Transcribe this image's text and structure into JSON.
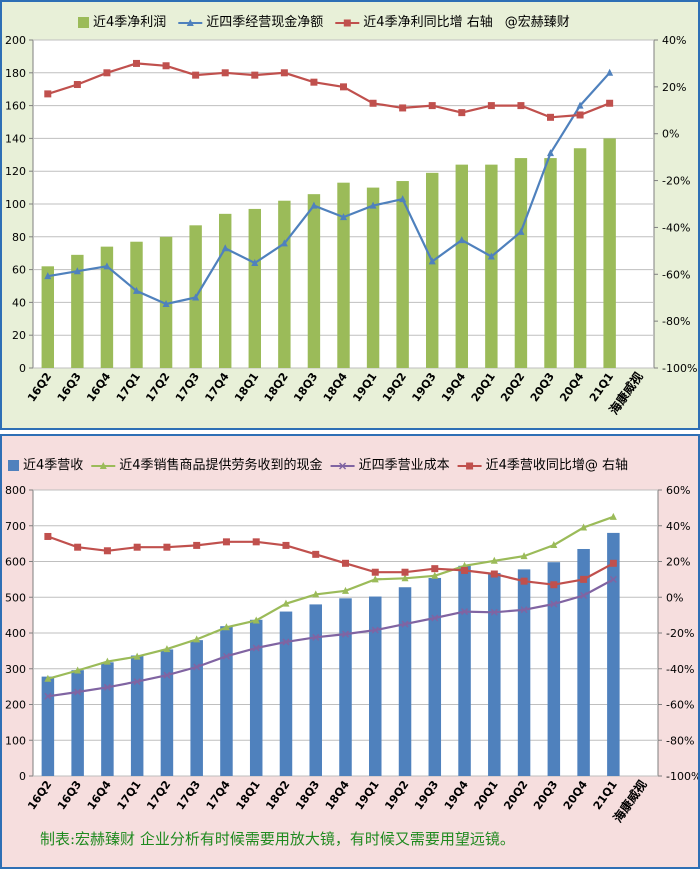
{
  "chart_data": [
    {
      "type": "bar",
      "title": "",
      "legend_position": "top",
      "legend": [
        "近4季净利润",
        "近四季经营现金净额",
        "近4季净利同比增 右轴",
        "@宏赫臻财"
      ],
      "categories": [
        "16Q2",
        "16Q3",
        "16Q4",
        "17Q1",
        "17Q2",
        "17Q3",
        "17Q4",
        "18Q1",
        "18Q2",
        "18Q3",
        "18Q4",
        "19Q1",
        "19Q2",
        "19Q3",
        "19Q4",
        "20Q1",
        "20Q2",
        "20Q3",
        "20Q4",
        "21Q1"
      ],
      "extra_xlabel": "海康威视",
      "ylim": [
        0,
        200
      ],
      "y_ticks": [
        0,
        20,
        40,
        60,
        80,
        100,
        120,
        140,
        160,
        180,
        200
      ],
      "y2lim": [
        -100,
        40
      ],
      "y2_ticks": [
        "-100%",
        "-80%",
        "-60%",
        "-40%",
        "-20%",
        "0%",
        "20%",
        "40%"
      ],
      "grid": true,
      "series": [
        {
          "name": "近4季净利润",
          "type": "bar",
          "axis": "left",
          "color": "#9bbb59",
          "values": [
            62,
            69,
            74,
            77,
            80,
            87,
            94,
            97,
            102,
            106,
            113,
            110,
            114,
            119,
            124,
            124,
            128,
            128,
            134,
            140
          ]
        },
        {
          "name": "近四季经营现金净额",
          "type": "line",
          "axis": "left",
          "color": "#4f81bd",
          "values": [
            56,
            59,
            62,
            47,
            39,
            43,
            73,
            64,
            76,
            99,
            92,
            99,
            103,
            65,
            78,
            68,
            83,
            131,
            160,
            180
          ]
        },
        {
          "name": "近4季净利同比增 右轴",
          "type": "line",
          "axis": "right",
          "color": "#c0504d",
          "values": [
            17,
            21,
            26,
            30,
            29,
            25,
            26,
            25,
            26,
            22,
            20,
            13,
            11,
            12,
            9,
            12,
            12,
            7,
            8,
            13
          ]
        }
      ]
    },
    {
      "type": "bar",
      "title": "",
      "legend_position": "top",
      "legend": [
        "近4季营收",
        "近4季销售商品提供劳务收到的现金",
        "近四季营业成本",
        "近4季营收同比增@ 右轴"
      ],
      "categories": [
        "16Q2",
        "16Q3",
        "16Q4",
        "17Q1",
        "17Q2",
        "17Q3",
        "17Q4",
        "18Q1",
        "18Q2",
        "18Q3",
        "18Q4",
        "19Q1",
        "19Q2",
        "19Q3",
        "19Q4",
        "20Q1",
        "20Q2",
        "20Q3",
        "20Q4",
        "21Q1"
      ],
      "extra_xlabel": "海康威视",
      "ylim": [
        0,
        800
      ],
      "y_ticks": [
        0,
        100,
        200,
        300,
        400,
        500,
        600,
        700,
        800
      ],
      "y2lim": [
        -100,
        60
      ],
      "y2_ticks": [
        "-100%",
        "-80%",
        "-60%",
        "-40%",
        "-20%",
        "0%",
        "20%",
        "40%",
        "60%"
      ],
      "grid": true,
      "series": [
        {
          "name": "近4季营收",
          "type": "bar",
          "axis": "left",
          "color": "#4f81bd",
          "values": [
            278,
            296,
            318,
            337,
            354,
            380,
            419,
            437,
            460,
            480,
            497,
            502,
            528,
            554,
            588,
            568,
            578,
            598,
            635,
            680
          ]
        },
        {
          "name": "近4季销售商品提供劳务收到的现金",
          "type": "line",
          "axis": "left",
          "color": "#9bbb59",
          "values": [
            272,
            295,
            320,
            334,
            355,
            382,
            416,
            435,
            482,
            508,
            518,
            550,
            553,
            560,
            588,
            602,
            615,
            646,
            695,
            725
          ]
        },
        {
          "name": "近四季营业成本",
          "type": "line",
          "axis": "left",
          "color": "#8064a2",
          "values": [
            223,
            235,
            248,
            264,
            282,
            305,
            335,
            358,
            375,
            388,
            397,
            408,
            425,
            442,
            460,
            458,
            465,
            481,
            505,
            550
          ]
        },
        {
          "name": "近4季营收同比增@ 右轴",
          "type": "line",
          "axis": "right",
          "color": "#c0504d",
          "values": [
            34,
            28,
            26,
            28,
            28,
            29,
            31,
            31,
            29,
            24,
            19,
            14,
            14,
            16,
            15,
            13,
            9,
            7,
            10,
            19
          ]
        }
      ]
    }
  ],
  "footer": "制表:宏赫臻财    企业分析有时候需要用放大镜，有时候又需要用望远镜。"
}
